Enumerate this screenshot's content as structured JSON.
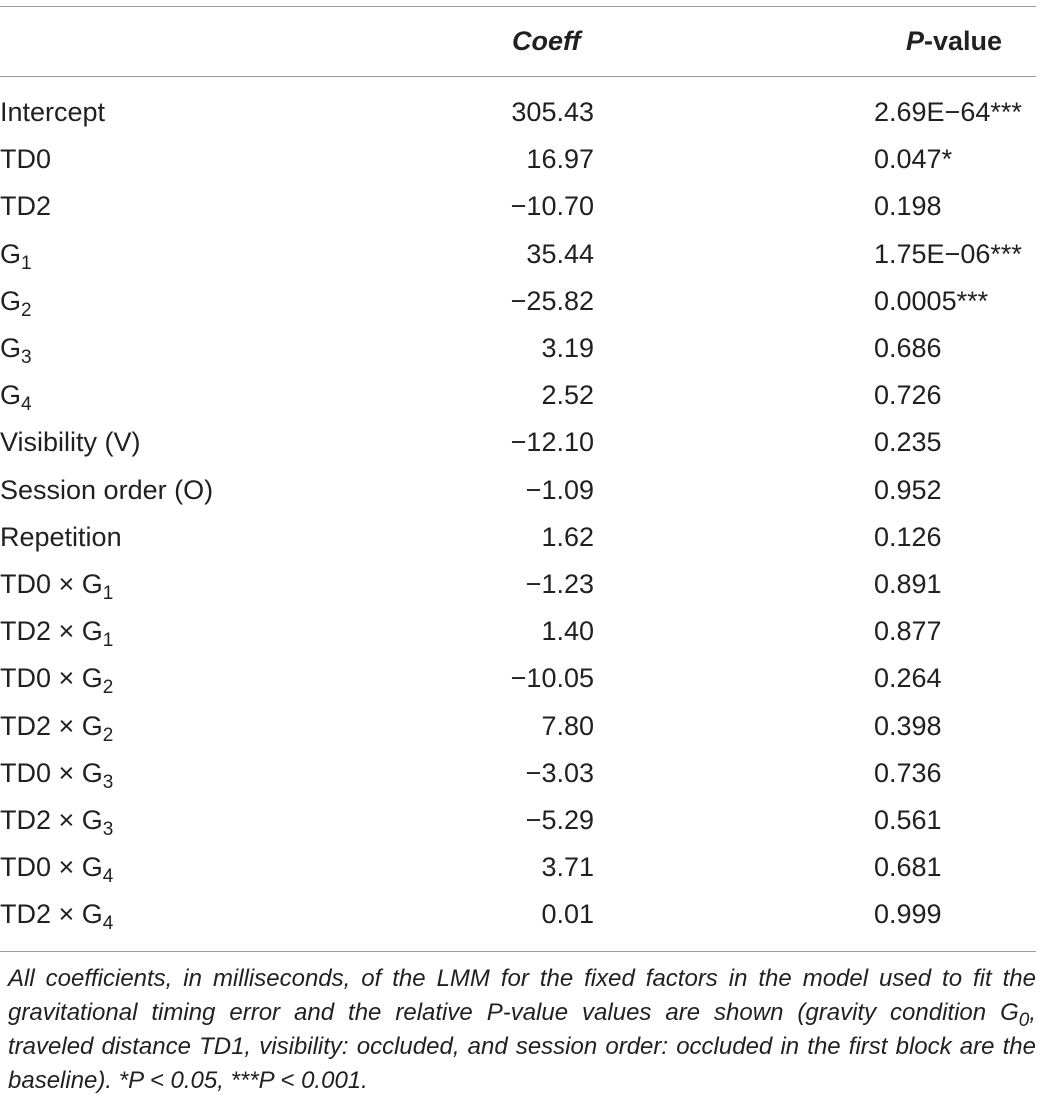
{
  "table": {
    "header": {
      "coeff": "Coeff",
      "pvalue_italic": "P",
      "pvalue_rest": "-value"
    },
    "rows": [
      {
        "name": "Intercept",
        "sub": "",
        "coeff": "305.43",
        "pvalue": "2.69E−64***"
      },
      {
        "name": "TD0",
        "sub": "",
        "coeff": "16.97",
        "pvalue": "0.047*"
      },
      {
        "name": "TD2",
        "sub": "",
        "coeff": "−10.70",
        "pvalue": "0.198"
      },
      {
        "name": "G",
        "sub": "1",
        "coeff": "35.44",
        "pvalue": "1.75E−06***"
      },
      {
        "name": "G",
        "sub": "2",
        "coeff": "−25.82",
        "pvalue": "0.0005***"
      },
      {
        "name": "G",
        "sub": "3",
        "coeff": "3.19",
        "pvalue": "0.686"
      },
      {
        "name": "G",
        "sub": "4",
        "coeff": "2.52",
        "pvalue": "0.726"
      },
      {
        "name": "Visibility (V)",
        "sub": "",
        "coeff": "−12.10",
        "pvalue": "0.235"
      },
      {
        "name": "Session order (O)",
        "sub": "",
        "coeff": "−1.09",
        "pvalue": "0.952"
      },
      {
        "name": "Repetition",
        "sub": "",
        "coeff": "1.62",
        "pvalue": "0.126"
      },
      {
        "name": "TD0 × G",
        "sub": "1",
        "coeff": "−1.23",
        "pvalue": "0.891"
      },
      {
        "name": "TD2 × G",
        "sub": "1",
        "coeff": "1.40",
        "pvalue": "0.877"
      },
      {
        "name": "TD0 × G",
        "sub": "2",
        "coeff": "−10.05",
        "pvalue": "0.264"
      },
      {
        "name": "TD2 × G",
        "sub": "2",
        "coeff": "7.80",
        "pvalue": "0.398"
      },
      {
        "name": "TD0 × G",
        "sub": "3",
        "coeff": "−3.03",
        "pvalue": "0.736"
      },
      {
        "name": "TD2 × G",
        "sub": "3",
        "coeff": "−5.29",
        "pvalue": "0.561"
      },
      {
        "name": "TD0 × G",
        "sub": "4",
        "coeff": "3.71",
        "pvalue": "0.681"
      },
      {
        "name": "TD2 × G",
        "sub": "4",
        "coeff": "0.01",
        "pvalue": "0.999"
      }
    ]
  },
  "caption": {
    "part1": "All coefficients, in milliseconds, of the LMM for the fixed factors in the model used to fit the gravitational timing error and the relative P-value values are shown (gravity condition G",
    "sub0": "0",
    "part2": ", traveled distance TD1, visibility: occluded, and session order: occluded in the first block are the baseline). *P < 0.05, ***P < 0.001."
  }
}
